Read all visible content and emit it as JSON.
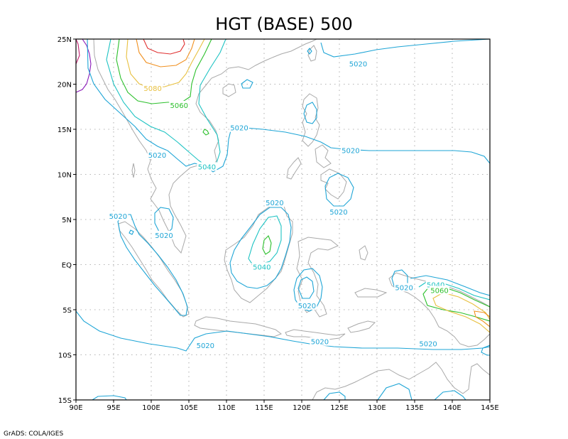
{
  "title": "HGT (BASE) 500",
  "credit": "GrADS: COLA/IGES",
  "x_ticks": [
    "90E",
    "95E",
    "100E",
    "105E",
    "110E",
    "115E",
    "120E",
    "125E",
    "130E",
    "135E",
    "140E",
    "145E"
  ],
  "y_ticks": [
    "25N",
    "20N",
    "15N",
    "10N",
    "5N",
    "EQ",
    "5S",
    "10S",
    "15S"
  ],
  "extent": {
    "lon": [
      90,
      145
    ],
    "lat": [
      -15,
      25
    ]
  },
  "grid": true,
  "colors": {
    "c5000": "#8b1ab8",
    "c5020": "#1ea5d6",
    "c5040": "#1ec3c3",
    "c5060": "#2cc02c",
    "c5080": "#e8c040",
    "c5100": "#f09020",
    "c5120": "#e03030",
    "c5140": "#c02070",
    "coast": "#a9a9a9"
  },
  "contour_labels": [
    {
      "text": "5020",
      "lon": 127.5,
      "lat": 22.2,
      "level": "5020"
    },
    {
      "text": "5080",
      "lon": 100.2,
      "lat": 19.5,
      "level": "5080"
    },
    {
      "text": "5060",
      "lon": 103.7,
      "lat": 17.6,
      "level": "5060"
    },
    {
      "text": "5020",
      "lon": 111.7,
      "lat": 15.1,
      "level": "5020"
    },
    {
      "text": "5020",
      "lon": 100.8,
      "lat": 12.1,
      "level": "5020"
    },
    {
      "text": "5040",
      "lon": 107.4,
      "lat": 10.8,
      "level": "5040"
    },
    {
      "text": "5020",
      "lon": 126.5,
      "lat": 12.6,
      "level": "5020"
    },
    {
      "text": "5020",
      "lon": 116.4,
      "lat": 6.8,
      "level": "5020"
    },
    {
      "text": "5020",
      "lon": 95.6,
      "lat": 5.3,
      "level": "5020"
    },
    {
      "text": "5020",
      "lon": 101.7,
      "lat": 3.2,
      "level": "5020"
    },
    {
      "text": "5020",
      "lon": 124.9,
      "lat": 5.8,
      "level": "5020"
    },
    {
      "text": "5040",
      "lon": 114.7,
      "lat": -0.3,
      "level": "5040"
    },
    {
      "text": "5020",
      "lon": 133.6,
      "lat": -2.6,
      "level": "5020"
    },
    {
      "text": "5040",
      "lon": 137.8,
      "lat": -2.3,
      "level": "5040"
    },
    {
      "text": "5060",
      "lon": 138.3,
      "lat": -2.9,
      "level": "5060"
    },
    {
      "text": "5020",
      "lon": 120.7,
      "lat": -4.6,
      "level": "5020"
    },
    {
      "text": "5020",
      "lon": 107.2,
      "lat": -9.0,
      "level": "5020"
    },
    {
      "text": "5020",
      "lon": 122.4,
      "lat": -8.6,
      "level": "5020"
    },
    {
      "text": "5020",
      "lon": 136.8,
      "lat": -8.8,
      "level": "5020"
    }
  ]
}
